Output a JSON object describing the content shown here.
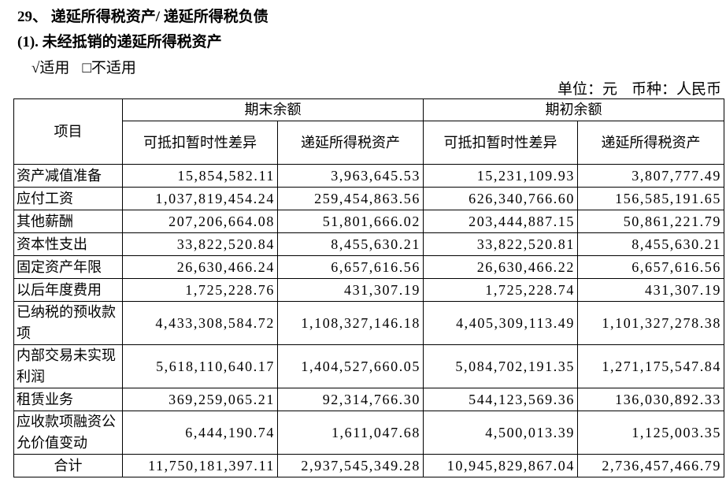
{
  "header": {
    "title": "29、 递延所得税资产/ 递延所得税负债",
    "subtitle": "(1). 未经抵销的递延所得税资产",
    "applicability": [
      "√适用",
      "□不适用"
    ],
    "unit": "单位：元",
    "currency": "币种：人民币"
  },
  "table": {
    "item_header": "项目",
    "groups": [
      "期末余额",
      "期初余额"
    ],
    "subheaders": [
      "可抵扣暂时性差异",
      "递延所得税资产",
      "可抵扣暂时性差异",
      "递延所得税资产"
    ],
    "rows": [
      [
        "资产减值准备",
        "15,854,582.11",
        "3,963,645.53",
        "15,231,109.93",
        "3,807,777.49"
      ],
      [
        "应付工资",
        "1,037,819,454.24",
        "259,454,863.56",
        "626,340,766.60",
        "156,585,191.65"
      ],
      [
        "其他薪酬",
        "207,206,664.08",
        "51,801,666.02",
        "203,444,887.15",
        "50,861,221.79"
      ],
      [
        "资本性支出",
        "33,822,520.84",
        "8,455,630.21",
        "33,822,520.81",
        "8,455,630.21"
      ],
      [
        "固定资产年限",
        "26,630,466.24",
        "6,657,616.56",
        "26,630,466.22",
        "6,657,616.56"
      ],
      [
        "以后年度费用",
        "1,725,228.76",
        "431,307.19",
        "1,725,228.74",
        "431,307.19"
      ],
      [
        "已纳税的预收款项",
        "4,433,308,584.72",
        "1,108,327,146.18",
        "4,405,309,113.49",
        "1,101,327,278.38"
      ],
      [
        "内部交易未实现利润",
        "5,618,110,640.17",
        "1,404,527,660.05",
        "5,084,702,191.35",
        "1,271,175,547.84"
      ],
      [
        "租赁业务",
        "369,259,065.21",
        "92,314,766.30",
        "544,123,569.36",
        "136,030,892.33"
      ],
      [
        "应收款项融资公允价值变动",
        "6,444,190.74",
        "1,611,047.68",
        "4,500,013.39",
        "1,125,003.35"
      ]
    ],
    "total": [
      "合计",
      "11,750,181,397.11",
      "2,937,545,349.28",
      "10,945,829,867.04",
      "2,736,457,466.79"
    ]
  }
}
